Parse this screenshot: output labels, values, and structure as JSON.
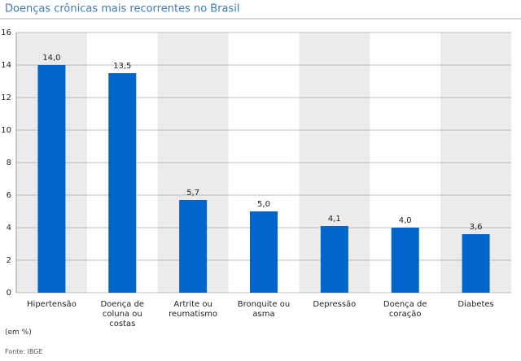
{
  "chart_data": {
    "type": "bar",
    "title": "Doenças crônicas mais recorrentes no Brasil",
    "categories": [
      "Hipertensão",
      "Doença de coluna ou costas",
      "Artrite ou reumatismo",
      "Bronquite ou asma",
      "Depressão",
      "Doença de coração",
      "Diabetes"
    ],
    "values": [
      14.0,
      13.5,
      5.7,
      5.0,
      4.1,
      4.0,
      3.6
    ],
    "value_labels": [
      "14,0",
      "13,5",
      "5,7",
      "5,0",
      "4,1",
      "4,0",
      "3,6"
    ],
    "color": "#0066cc",
    "ylim": [
      0,
      16
    ],
    "yticks": [
      0,
      2,
      4,
      6,
      8,
      10,
      12,
      14,
      16
    ],
    "grid": true,
    "unit_note": "(em %)",
    "source": "Fonte: IBGE"
  }
}
